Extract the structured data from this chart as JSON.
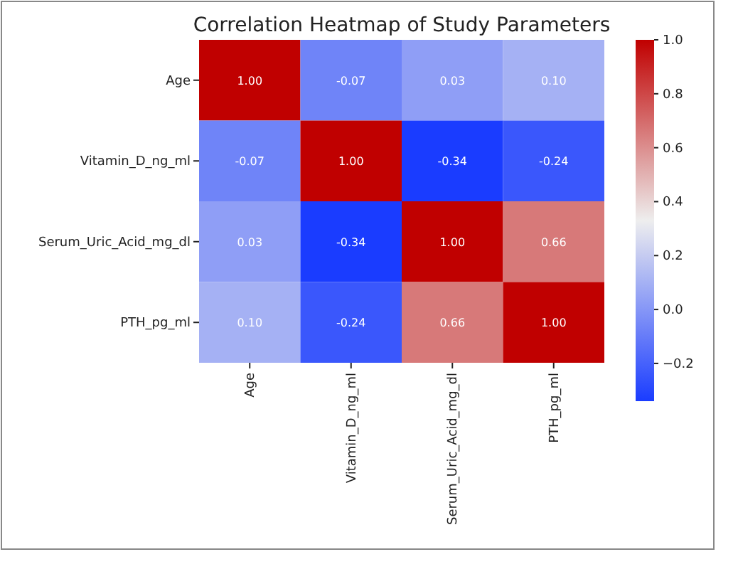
{
  "chart_data": {
    "type": "heatmap",
    "title": "Correlation Heatmap of Study Parameters",
    "categories": [
      "Age",
      "Vitamin_D_ng_ml",
      "Serum_Uric_Acid_mg_dl",
      "PTH_pg_ml"
    ],
    "y_categories": [
      "Age",
      "Vitamin_D_ng_ml",
      "Serum_Uric_Acid_mg_dl",
      "PTH_pg_ml"
    ],
    "cells": [
      [
        1.0,
        -0.07,
        0.03,
        0.1
      ],
      [
        -0.07,
        1.0,
        -0.34,
        -0.24
      ],
      [
        0.03,
        -0.34,
        1.0,
        0.66
      ],
      [
        0.1,
        -0.24,
        0.66,
        1.0
      ]
    ],
    "cell_labels": [
      [
        "1.00",
        "-0.07",
        "0.03",
        "0.10"
      ],
      [
        "-0.07",
        "1.00",
        "-0.34",
        "-0.24"
      ],
      [
        "0.03",
        "-0.34",
        "1.00",
        "0.66"
      ],
      [
        "0.10",
        "-0.24",
        "0.66",
        "1.00"
      ]
    ],
    "clim": [
      -0.34,
      1.0
    ],
    "cticks": [
      {
        "value": -0.2,
        "label": "−0.2"
      },
      {
        "value": 0,
        "label": "0.0"
      },
      {
        "value": 0.2,
        "label": "0.2"
      },
      {
        "value": 0.4,
        "label": "0.4"
      },
      {
        "value": 0.6,
        "label": "0.6"
      },
      {
        "value": 0.8,
        "label": "0.8"
      },
      {
        "value": 1.0,
        "label": "1.0"
      }
    ]
  }
}
